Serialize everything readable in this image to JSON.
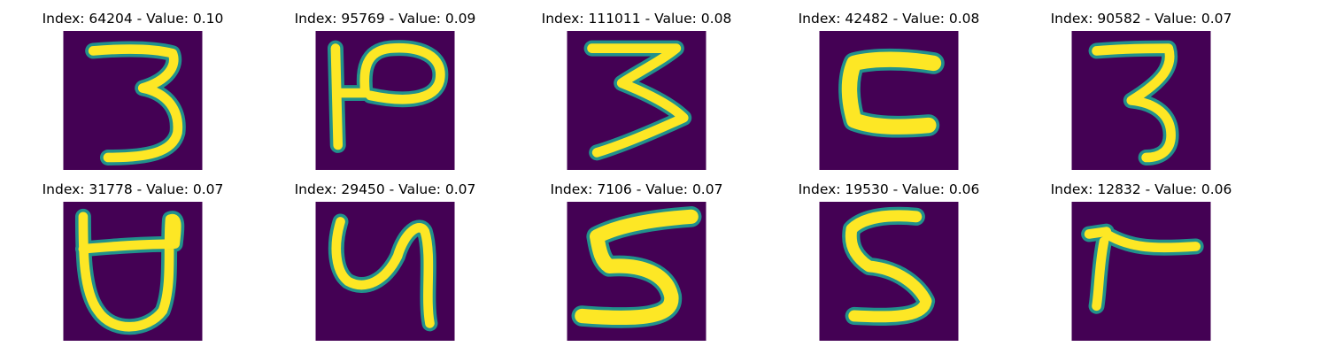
{
  "colors": {
    "background": "#440154",
    "stroke_edge": "#21918c",
    "stroke_core": "#fde725"
  },
  "title_prefix_index": "Index: ",
  "title_separator_value": " - Value: ",
  "items": [
    {
      "title": "Index: 64204 - Value: 0.10",
      "index": 64204,
      "value": 0.1,
      "glyph": "3"
    },
    {
      "title": "Index: 95769 - Value: 0.09",
      "index": 95769,
      "value": 0.09,
      "glyph": "P-stroke"
    },
    {
      "title": "Index: 111011 - Value: 0.08",
      "index": 111011,
      "value": 0.08,
      "glyph": "3-zigzag"
    },
    {
      "title": "Index: 42482 - Value: 0.08",
      "index": 42482,
      "value": 0.08,
      "glyph": "C-box"
    },
    {
      "title": "Index: 90582 - Value: 0.07",
      "index": 90582,
      "value": 0.07,
      "glyph": "3"
    },
    {
      "title": "Index: 31778 - Value: 0.07",
      "index": 31778,
      "value": 0.07,
      "glyph": "U-box"
    },
    {
      "title": "Index: 29450 - Value: 0.07",
      "index": 29450,
      "value": 0.07,
      "glyph": "4-curly"
    },
    {
      "title": "Index: 7106 - Value: 0.07",
      "index": 7106,
      "value": 0.07,
      "glyph": "5"
    },
    {
      "title": "Index: 19530 - Value: 0.06",
      "index": 19530,
      "value": 0.06,
      "glyph": "5"
    },
    {
      "title": "Index: 12832 - Value: 0.06",
      "index": 12832,
      "value": 0.06,
      "glyph": "7-flat"
    }
  ]
}
